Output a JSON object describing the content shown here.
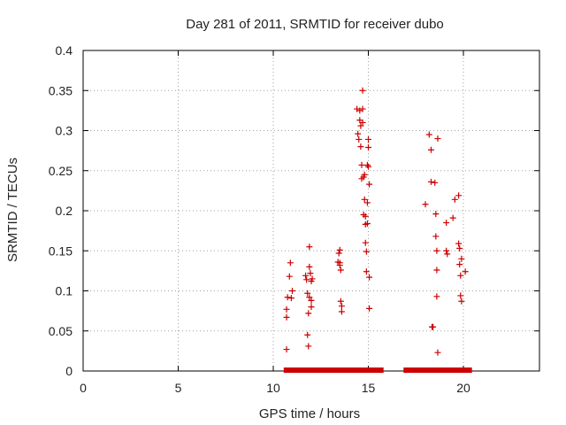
{
  "chart_data": {
    "type": "scatter",
    "title": "Day 281 of 2011, SRMTID for receiver dubo",
    "xlabel": "GPS time / hours",
    "ylabel": "SRMTID / TECUs",
    "xlim": [
      0,
      24
    ],
    "ylim": [
      0,
      0.4
    ],
    "xticks": [
      0,
      5,
      10,
      15,
      20
    ],
    "yticks": [
      0,
      0.05,
      0.1,
      0.15,
      0.2,
      0.25,
      0.3,
      0.35,
      0.4
    ],
    "ytick_labels": [
      "0",
      "0.05",
      "0.1",
      "0.15",
      "0.2",
      "0.25",
      "0.3",
      "0.35",
      "0.4"
    ],
    "grid": true,
    "marker": "+",
    "color": "#cc0000",
    "series": [
      {
        "name": "SRMTID",
        "points": [
          [
            10.7,
            0.027
          ],
          [
            10.7,
            0.067
          ],
          [
            10.7,
            0.077
          ],
          [
            10.75,
            0.092
          ],
          [
            10.85,
            0.118
          ],
          [
            10.9,
            0.135
          ],
          [
            10.95,
            0.091
          ],
          [
            11.0,
            0.1
          ],
          [
            11.7,
            0.119
          ],
          [
            11.75,
            0.114
          ],
          [
            11.8,
            0.097
          ],
          [
            11.8,
            0.045
          ],
          [
            11.85,
            0.031
          ],
          [
            11.85,
            0.072
          ],
          [
            11.9,
            0.155
          ],
          [
            11.9,
            0.13
          ],
          [
            11.9,
            0.092
          ],
          [
            11.95,
            0.122
          ],
          [
            12.0,
            0.112
          ],
          [
            12.0,
            0.088
          ],
          [
            12.0,
            0.08
          ],
          [
            12.05,
            0.115
          ],
          [
            13.4,
            0.136
          ],
          [
            13.45,
            0.147
          ],
          [
            13.5,
            0.151
          ],
          [
            13.5,
            0.135
          ],
          [
            13.5,
            0.132
          ],
          [
            13.55,
            0.126
          ],
          [
            13.55,
            0.087
          ],
          [
            13.6,
            0.081
          ],
          [
            13.6,
            0.074
          ],
          [
            14.4,
            0.327
          ],
          [
            14.45,
            0.296
          ],
          [
            14.5,
            0.289
          ],
          [
            14.55,
            0.325
          ],
          [
            14.55,
            0.313
          ],
          [
            14.6,
            0.306
          ],
          [
            14.6,
            0.28
          ],
          [
            14.65,
            0.257
          ],
          [
            14.65,
            0.24
          ],
          [
            14.7,
            0.35
          ],
          [
            14.7,
            0.327
          ],
          [
            14.7,
            0.31
          ],
          [
            14.75,
            0.195
          ],
          [
            14.75,
            0.242
          ],
          [
            14.8,
            0.245
          ],
          [
            14.8,
            0.214
          ],
          [
            14.85,
            0.193
          ],
          [
            14.85,
            0.183
          ],
          [
            14.85,
            0.16
          ],
          [
            14.9,
            0.149
          ],
          [
            14.9,
            0.124
          ],
          [
            14.95,
            0.257
          ],
          [
            14.95,
            0.21
          ],
          [
            14.95,
            0.184
          ],
          [
            15.0,
            0.289
          ],
          [
            15.0,
            0.279
          ],
          [
            15.0,
            0.255
          ],
          [
            15.05,
            0.233
          ],
          [
            15.05,
            0.117
          ],
          [
            15.05,
            0.078
          ],
          [
            18.0,
            0.208
          ],
          [
            18.2,
            0.295
          ],
          [
            18.3,
            0.276
          ],
          [
            18.3,
            0.236
          ],
          [
            18.35,
            0.055
          ],
          [
            18.4,
            0.055
          ],
          [
            18.5,
            0.235
          ],
          [
            18.55,
            0.196
          ],
          [
            18.55,
            0.168
          ],
          [
            18.6,
            0.15
          ],
          [
            18.6,
            0.126
          ],
          [
            18.6,
            0.093
          ],
          [
            18.65,
            0.29
          ],
          [
            18.65,
            0.023
          ],
          [
            19.1,
            0.185
          ],
          [
            19.1,
            0.15
          ],
          [
            19.15,
            0.146
          ],
          [
            19.45,
            0.191
          ],
          [
            19.55,
            0.214
          ],
          [
            19.75,
            0.219
          ],
          [
            19.75,
            0.159
          ],
          [
            19.8,
            0.153
          ],
          [
            19.8,
            0.133
          ],
          [
            19.85,
            0.119
          ],
          [
            19.85,
            0.094
          ],
          [
            19.9,
            0.087
          ],
          [
            19.9,
            0.14
          ],
          [
            20.1,
            0.124
          ]
        ]
      }
    ],
    "zero_band": {
      "ranges": [
        [
          10.55,
          15.8
        ],
        [
          16.85,
          20.45
        ]
      ],
      "y": 0.001
    }
  }
}
